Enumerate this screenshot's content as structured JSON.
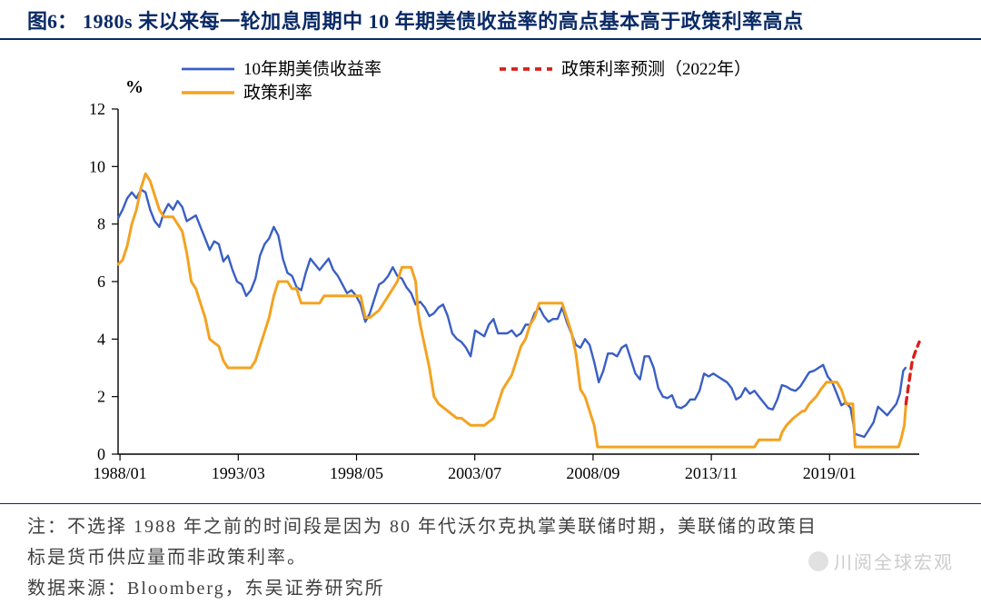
{
  "figure": {
    "label": "图6：",
    "title": "1980s 末以来每一轮加息周期中 10 年期美债收益率的高点基本高于政策利率高点"
  },
  "footer": {
    "note_line1": "注：不选择 1988 年之前的时间段是因为 80 年代沃尔克执掌美联储时期，美联储的政策目",
    "note_line2": "标是货币供应量而非政策利率。",
    "source": "数据来源：Bloomberg，东吴证券研究所"
  },
  "watermark": {
    "text": "川阅全球宏观"
  },
  "chart": {
    "type": "line",
    "background_color": "#ffffff",
    "axis_color": "#000000",
    "tick_font_size": 18,
    "tick_color": "#000000",
    "y_unit_label": "%",
    "ylim": [
      0,
      12
    ],
    "ytick_step": 2,
    "xlim": [
      1988.0,
      2023.0
    ],
    "x_tick_positions": [
      1988.083,
      1993.25,
      1998.417,
      2003.583,
      2008.75,
      2013.917,
      2019.083
    ],
    "x_tick_labels": [
      "1988/01",
      "1993/03",
      "1998/05",
      "2003/07",
      "2008/09",
      "2013/11",
      "2019/01"
    ],
    "legend": {
      "font_size": 19,
      "items": [
        {
          "label": "10年期美债收益率",
          "color": "#3a5fc4",
          "style": "solid",
          "width": 2.2,
          "swatch": "line"
        },
        {
          "label": "政策利率预测（2022年）",
          "color": "#d8201a",
          "style": "dashed",
          "width": 3.2,
          "swatch": "line"
        },
        {
          "label": "政策利率",
          "color": "#f3a322",
          "style": "solid",
          "width": 3.0,
          "swatch": "line"
        }
      ]
    },
    "series": [
      {
        "name": "10年期美债收益率",
        "color": "#3a5fc4",
        "style": "solid",
        "width": 2.4,
        "points": [
          [
            1988.0,
            8.2
          ],
          [
            1988.2,
            8.5
          ],
          [
            1988.4,
            8.9
          ],
          [
            1988.6,
            9.1
          ],
          [
            1988.8,
            8.9
          ],
          [
            1989.0,
            9.2
          ],
          [
            1989.2,
            9.1
          ],
          [
            1989.4,
            8.5
          ],
          [
            1989.6,
            8.1
          ],
          [
            1989.8,
            7.9
          ],
          [
            1990.0,
            8.4
          ],
          [
            1990.2,
            8.7
          ],
          [
            1990.4,
            8.5
          ],
          [
            1990.6,
            8.8
          ],
          [
            1990.8,
            8.6
          ],
          [
            1991.0,
            8.1
          ],
          [
            1991.2,
            8.2
          ],
          [
            1991.4,
            8.3
          ],
          [
            1991.6,
            7.9
          ],
          [
            1991.8,
            7.5
          ],
          [
            1992.0,
            7.1
          ],
          [
            1992.2,
            7.4
          ],
          [
            1992.4,
            7.3
          ],
          [
            1992.6,
            6.7
          ],
          [
            1992.8,
            6.9
          ],
          [
            1993.0,
            6.4
          ],
          [
            1993.2,
            6.0
          ],
          [
            1993.4,
            5.9
          ],
          [
            1993.6,
            5.5
          ],
          [
            1993.8,
            5.7
          ],
          [
            1994.0,
            6.1
          ],
          [
            1994.2,
            6.9
          ],
          [
            1994.4,
            7.3
          ],
          [
            1994.6,
            7.5
          ],
          [
            1994.8,
            7.9
          ],
          [
            1995.0,
            7.6
          ],
          [
            1995.2,
            6.8
          ],
          [
            1995.4,
            6.3
          ],
          [
            1995.6,
            6.2
          ],
          [
            1995.8,
            5.8
          ],
          [
            1996.0,
            5.7
          ],
          [
            1996.2,
            6.3
          ],
          [
            1996.4,
            6.8
          ],
          [
            1996.6,
            6.6
          ],
          [
            1996.8,
            6.4
          ],
          [
            1997.0,
            6.6
          ],
          [
            1997.2,
            6.8
          ],
          [
            1997.4,
            6.4
          ],
          [
            1997.6,
            6.2
          ],
          [
            1997.8,
            5.9
          ],
          [
            1998.0,
            5.6
          ],
          [
            1998.2,
            5.7
          ],
          [
            1998.4,
            5.5
          ],
          [
            1998.6,
            5.2
          ],
          [
            1998.8,
            4.6
          ],
          [
            1999.0,
            4.9
          ],
          [
            1999.2,
            5.4
          ],
          [
            1999.4,
            5.9
          ],
          [
            1999.6,
            6.0
          ],
          [
            1999.8,
            6.2
          ],
          [
            2000.0,
            6.5
          ],
          [
            2000.2,
            6.2
          ],
          [
            2000.4,
            6.1
          ],
          [
            2000.6,
            5.8
          ],
          [
            2000.8,
            5.6
          ],
          [
            2001.0,
            5.2
          ],
          [
            2001.2,
            5.3
          ],
          [
            2001.4,
            5.1
          ],
          [
            2001.6,
            4.8
          ],
          [
            2001.8,
            4.9
          ],
          [
            2002.0,
            5.1
          ],
          [
            2002.2,
            5.2
          ],
          [
            2002.4,
            4.8
          ],
          [
            2002.6,
            4.2
          ],
          [
            2002.8,
            4.0
          ],
          [
            2003.0,
            3.9
          ],
          [
            2003.2,
            3.7
          ],
          [
            2003.4,
            3.4
          ],
          [
            2003.6,
            4.3
          ],
          [
            2003.8,
            4.2
          ],
          [
            2004.0,
            4.1
          ],
          [
            2004.2,
            4.5
          ],
          [
            2004.4,
            4.7
          ],
          [
            2004.6,
            4.2
          ],
          [
            2004.8,
            4.2
          ],
          [
            2005.0,
            4.2
          ],
          [
            2005.2,
            4.3
          ],
          [
            2005.4,
            4.1
          ],
          [
            2005.6,
            4.2
          ],
          [
            2005.8,
            4.5
          ],
          [
            2006.0,
            4.5
          ],
          [
            2006.2,
            4.9
          ],
          [
            2006.4,
            5.1
          ],
          [
            2006.6,
            4.8
          ],
          [
            2006.8,
            4.6
          ],
          [
            2007.0,
            4.7
          ],
          [
            2007.2,
            4.7
          ],
          [
            2007.4,
            5.1
          ],
          [
            2007.6,
            4.6
          ],
          [
            2007.8,
            4.2
          ],
          [
            2008.0,
            3.8
          ],
          [
            2008.2,
            3.7
          ],
          [
            2008.4,
            4.0
          ],
          [
            2008.6,
            3.8
          ],
          [
            2008.8,
            3.2
          ],
          [
            2009.0,
            2.5
          ],
          [
            2009.2,
            2.9
          ],
          [
            2009.4,
            3.5
          ],
          [
            2009.6,
            3.5
          ],
          [
            2009.8,
            3.4
          ],
          [
            2010.0,
            3.7
          ],
          [
            2010.2,
            3.8
          ],
          [
            2010.4,
            3.3
          ],
          [
            2010.6,
            2.8
          ],
          [
            2010.8,
            2.6
          ],
          [
            2011.0,
            3.4
          ],
          [
            2011.2,
            3.4
          ],
          [
            2011.4,
            3.0
          ],
          [
            2011.6,
            2.3
          ],
          [
            2011.8,
            2.0
          ],
          [
            2012.0,
            1.95
          ],
          [
            2012.2,
            2.05
          ],
          [
            2012.4,
            1.65
          ],
          [
            2012.6,
            1.6
          ],
          [
            2012.8,
            1.7
          ],
          [
            2013.0,
            1.9
          ],
          [
            2013.2,
            1.9
          ],
          [
            2013.4,
            2.2
          ],
          [
            2013.6,
            2.8
          ],
          [
            2013.8,
            2.7
          ],
          [
            2014.0,
            2.8
          ],
          [
            2014.2,
            2.7
          ],
          [
            2014.4,
            2.6
          ],
          [
            2014.6,
            2.5
          ],
          [
            2014.8,
            2.3
          ],
          [
            2015.0,
            1.9
          ],
          [
            2015.2,
            2.0
          ],
          [
            2015.4,
            2.3
          ],
          [
            2015.6,
            2.1
          ],
          [
            2015.8,
            2.2
          ],
          [
            2016.0,
            2.0
          ],
          [
            2016.2,
            1.8
          ],
          [
            2016.4,
            1.6
          ],
          [
            2016.6,
            1.55
          ],
          [
            2016.8,
            1.9
          ],
          [
            2017.0,
            2.4
          ],
          [
            2017.2,
            2.35
          ],
          [
            2017.4,
            2.25
          ],
          [
            2017.6,
            2.2
          ],
          [
            2017.8,
            2.35
          ],
          [
            2018.0,
            2.6
          ],
          [
            2018.2,
            2.85
          ],
          [
            2018.4,
            2.9
          ],
          [
            2018.6,
            3.0
          ],
          [
            2018.8,
            3.1
          ],
          [
            2019.0,
            2.7
          ],
          [
            2019.2,
            2.5
          ],
          [
            2019.4,
            2.1
          ],
          [
            2019.6,
            1.7
          ],
          [
            2019.8,
            1.8
          ],
          [
            2020.0,
            1.6
          ],
          [
            2020.2,
            0.7
          ],
          [
            2020.4,
            0.65
          ],
          [
            2020.6,
            0.6
          ],
          [
            2020.8,
            0.85
          ],
          [
            2021.0,
            1.1
          ],
          [
            2021.2,
            1.65
          ],
          [
            2021.4,
            1.5
          ],
          [
            2021.6,
            1.35
          ],
          [
            2021.8,
            1.55
          ],
          [
            2022.0,
            1.75
          ],
          [
            2022.15,
            2.1
          ],
          [
            2022.3,
            2.9
          ],
          [
            2022.4,
            3.0
          ]
        ]
      },
      {
        "name": "政策利率",
        "color": "#f3a322",
        "style": "solid",
        "width": 3.0,
        "points": [
          [
            1988.0,
            6.6
          ],
          [
            1988.2,
            6.75
          ],
          [
            1988.4,
            7.25
          ],
          [
            1988.6,
            8.0
          ],
          [
            1988.8,
            8.5
          ],
          [
            1989.0,
            9.25
          ],
          [
            1989.2,
            9.75
          ],
          [
            1989.4,
            9.5
          ],
          [
            1989.6,
            9.0
          ],
          [
            1989.8,
            8.5
          ],
          [
            1990.0,
            8.25
          ],
          [
            1990.4,
            8.25
          ],
          [
            1990.8,
            7.75
          ],
          [
            1991.0,
            7.0
          ],
          [
            1991.2,
            6.0
          ],
          [
            1991.4,
            5.75
          ],
          [
            1991.6,
            5.25
          ],
          [
            1991.8,
            4.75
          ],
          [
            1992.0,
            4.0
          ],
          [
            1992.4,
            3.75
          ],
          [
            1992.6,
            3.25
          ],
          [
            1992.8,
            3.0
          ],
          [
            1993.0,
            3.0
          ],
          [
            1993.8,
            3.0
          ],
          [
            1994.0,
            3.25
          ],
          [
            1994.2,
            3.75
          ],
          [
            1994.4,
            4.25
          ],
          [
            1994.6,
            4.75
          ],
          [
            1994.8,
            5.5
          ],
          [
            1995.0,
            6.0
          ],
          [
            1995.4,
            6.0
          ],
          [
            1995.6,
            5.75
          ],
          [
            1995.8,
            5.75
          ],
          [
            1996.0,
            5.25
          ],
          [
            1996.8,
            5.25
          ],
          [
            1997.0,
            5.5
          ],
          [
            1997.8,
            5.5
          ],
          [
            1998.0,
            5.5
          ],
          [
            1998.6,
            5.5
          ],
          [
            1998.8,
            4.75
          ],
          [
            1999.0,
            4.75
          ],
          [
            1999.4,
            5.0
          ],
          [
            1999.6,
            5.25
          ],
          [
            1999.8,
            5.5
          ],
          [
            2000.0,
            5.75
          ],
          [
            2000.2,
            6.0
          ],
          [
            2000.4,
            6.5
          ],
          [
            2000.8,
            6.5
          ],
          [
            2001.0,
            6.0
          ],
          [
            2001.1,
            5.0
          ],
          [
            2001.2,
            4.5
          ],
          [
            2001.4,
            3.75
          ],
          [
            2001.6,
            3.0
          ],
          [
            2001.8,
            2.0
          ],
          [
            2002.0,
            1.75
          ],
          [
            2002.8,
            1.25
          ],
          [
            2003.0,
            1.25
          ],
          [
            2003.4,
            1.0
          ],
          [
            2004.0,
            1.0
          ],
          [
            2004.4,
            1.25
          ],
          [
            2004.6,
            1.75
          ],
          [
            2004.8,
            2.25
          ],
          [
            2005.0,
            2.5
          ],
          [
            2005.2,
            2.75
          ],
          [
            2005.4,
            3.25
          ],
          [
            2005.6,
            3.75
          ],
          [
            2005.8,
            4.0
          ],
          [
            2006.0,
            4.5
          ],
          [
            2006.2,
            4.75
          ],
          [
            2006.4,
            5.25
          ],
          [
            2007.4,
            5.25
          ],
          [
            2007.6,
            4.75
          ],
          [
            2007.8,
            4.25
          ],
          [
            2008.0,
            3.5
          ],
          [
            2008.2,
            2.25
          ],
          [
            2008.4,
            2.0
          ],
          [
            2008.8,
            1.0
          ],
          [
            2008.95,
            0.25
          ],
          [
            2009.0,
            0.25
          ],
          [
            2015.8,
            0.25
          ],
          [
            2016.0,
            0.5
          ],
          [
            2016.9,
            0.5
          ],
          [
            2017.0,
            0.75
          ],
          [
            2017.2,
            1.0
          ],
          [
            2017.5,
            1.25
          ],
          [
            2017.9,
            1.5
          ],
          [
            2018.0,
            1.5
          ],
          [
            2018.2,
            1.75
          ],
          [
            2018.5,
            2.0
          ],
          [
            2018.7,
            2.25
          ],
          [
            2018.95,
            2.5
          ],
          [
            2019.4,
            2.5
          ],
          [
            2019.6,
            2.25
          ],
          [
            2019.7,
            2.0
          ],
          [
            2019.8,
            1.75
          ],
          [
            2020.1,
            1.75
          ],
          [
            2020.2,
            0.25
          ],
          [
            2022.1,
            0.25
          ],
          [
            2022.2,
            0.5
          ],
          [
            2022.35,
            1.0
          ],
          [
            2022.42,
            1.75
          ]
        ]
      },
      {
        "name": "政策利率预测（2022年）",
        "color": "#d8201a",
        "style": "dashed",
        "width": 3.4,
        "points": [
          [
            2022.42,
            1.75
          ],
          [
            2022.55,
            2.5
          ],
          [
            2022.7,
            3.25
          ],
          [
            2022.85,
            3.6
          ],
          [
            2023.0,
            3.9
          ]
        ]
      }
    ]
  }
}
